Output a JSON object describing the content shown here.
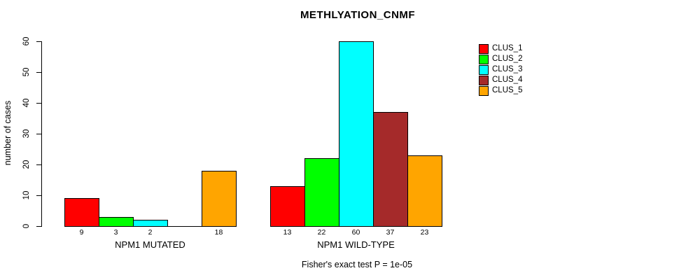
{
  "chart_data": {
    "type": "bar",
    "title": "METHLYATION_CNMF",
    "ylabel": "number of cases",
    "xlabel": "",
    "ylim": [
      0,
      60
    ],
    "yticks": [
      0,
      10,
      20,
      30,
      40,
      50,
      60
    ],
    "grid": false,
    "legend_position": "right",
    "categories": [
      "CLUS_1",
      "CLUS_2",
      "CLUS_3",
      "CLUS_4",
      "CLUS_5"
    ],
    "colors": [
      "#FF0000",
      "#00FF00",
      "#00FFFF",
      "#A52A2A",
      "#FFA500"
    ],
    "groups": [
      {
        "label": "NPM1 MUTATED",
        "values": [
          9,
          3,
          2,
          0,
          18
        ]
      },
      {
        "label": "NPM1 WILD-TYPE",
        "values": [
          13,
          22,
          60,
          37,
          23
        ]
      }
    ],
    "bar_value_labels_shown": true,
    "zero_value_label_hidden": true,
    "annotation": "Fisher's exact test P = 1e-05"
  },
  "legend": {
    "items": [
      {
        "label": "CLUS_1",
        "color": "#FF0000"
      },
      {
        "label": "CLUS_2",
        "color": "#00FF00"
      },
      {
        "label": "CLUS_3",
        "color": "#00FFFF"
      },
      {
        "label": "CLUS_4",
        "color": "#A52A2A"
      },
      {
        "label": "CLUS_5",
        "color": "#FFA500"
      }
    ]
  }
}
